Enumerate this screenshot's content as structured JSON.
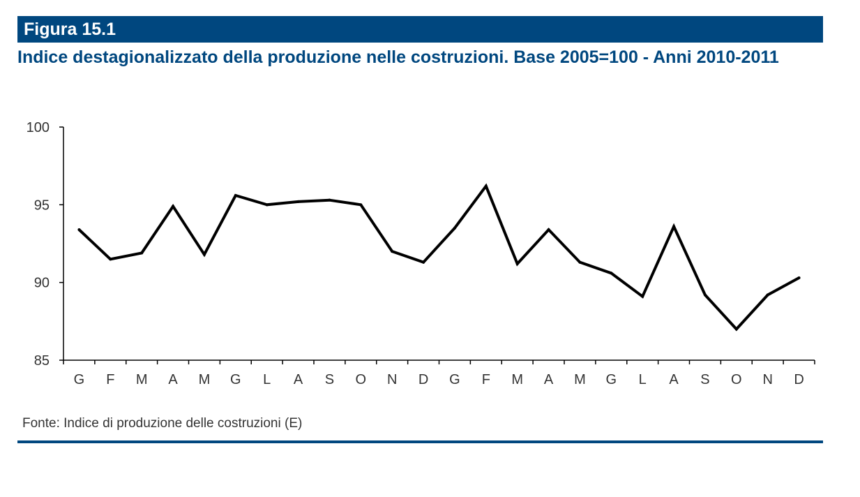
{
  "figure_label": "Figura 15.1",
  "source": "Fonte: Indice di produzione delle costruzioni (E)",
  "colors": {
    "brand": "#00477f",
    "line": "#000000",
    "axis": "#000000",
    "text": "#333333"
  },
  "chart_data": {
    "type": "line",
    "title": "Indice destagionalizzato della produzione nelle costruzioni. Base 2005=100 - Anni 2010-2011",
    "xlabel": "",
    "ylabel": "",
    "categories": [
      "G",
      "F",
      "M",
      "A",
      "M",
      "G",
      "L",
      "A",
      "S",
      "O",
      "N",
      "D",
      "G",
      "F",
      "M",
      "A",
      "M",
      "G",
      "L",
      "A",
      "S",
      "O",
      "N",
      "D"
    ],
    "series": [
      {
        "values": [
          93.4,
          91.5,
          91.9,
          94.9,
          91.8,
          95.6,
          95.0,
          95.2,
          95.3,
          95.0,
          92.0,
          91.3,
          93.5,
          96.2,
          91.2,
          93.4,
          91.3,
          90.6,
          89.1,
          93.6,
          89.2,
          87.0,
          89.2,
          90.3
        ]
      }
    ],
    "ylim": [
      85,
      100
    ],
    "yticks": [
      85,
      90,
      95,
      100
    ],
    "grid": false,
    "legend": "none"
  }
}
